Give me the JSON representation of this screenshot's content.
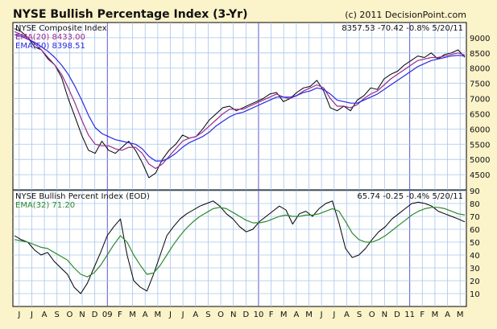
{
  "chart_data": {
    "type": "line",
    "title": "NYSE Bullish Percentage Index (3-Yr)",
    "copyright": "(c) 2011 DecisionPoint.com",
    "colors": {
      "background": "#fbf3c9",
      "plot_background": "#ffffff",
      "grid": "#a7c6e8",
      "year_divider": "#5a5ad0",
      "price": "#000000",
      "ema_short": "#9b2a8e",
      "ema_long": "#2a2adf",
      "bpi_ema": "#2e8a2e"
    },
    "x_axis": {
      "tick_labels": [
        "J",
        "J",
        "A",
        "S",
        "O",
        "N",
        "D",
        "09",
        "F",
        "M",
        "A",
        "M",
        "J",
        "J",
        "A",
        "S",
        "O",
        "N",
        "D",
        "10",
        "F",
        "M",
        "A",
        "M",
        "J",
        "J",
        "A",
        "S",
        "O",
        "N",
        "D",
        "11",
        "F",
        "M",
        "A",
        "M"
      ],
      "year_labels": [
        "09",
        "10",
        "11"
      ]
    },
    "panels": [
      {
        "name": "NYSE Composite Index",
        "ema_labels": [
          "EMA(20) 8433.00",
          "EMA(50) 8398.51"
        ],
        "readout": "8357.53  -70.42  -0.8%  5/20/11",
        "y_range": [
          4000,
          9500
        ],
        "y_ticks": [
          4500,
          5000,
          5500,
          6000,
          6500,
          7000,
          7500,
          8000,
          8500,
          9000
        ],
        "series": [
          {
            "values": [
              9300,
              9200,
              9000,
              8700,
              8600,
              8300,
              8100,
              7700,
              7000,
              6400,
              5800,
              5300,
              5200,
              5600,
              5300,
              5200,
              5400,
              5600,
              5300,
              4900,
              4400,
              4550,
              5000,
              5300,
              5500,
              5800,
              5700,
              5750,
              6000,
              6300,
              6500,
              6700,
              6750,
              6600,
              6700,
              6800,
              6900,
              7000,
              7150,
              7200,
              6900,
              7000,
              7200,
              7350,
              7400,
              7600,
              7250,
              6700,
              6600,
              6750,
              6600,
              6950,
              7100,
              7350,
              7300,
              7650,
              7800,
              7900,
              8100,
              8250,
              8400,
              8350,
              8500,
              8300,
              8450,
              8500,
              8600,
              8357.53
            ]
          },
          {
            "name": "EMA(20)",
            "values": [
              9200,
              9100,
              9000,
              8800,
              8600,
              8350,
              8100,
              7800,
              7350,
              6850,
              6300,
              5800,
              5500,
              5450,
              5450,
              5350,
              5300,
              5400,
              5400,
              5200,
              4850,
              4700,
              4850,
              5100,
              5350,
              5600,
              5700,
              5750,
              5900,
              6100,
              6300,
              6500,
              6650,
              6650,
              6650,
              6750,
              6850,
              6950,
              7050,
              7150,
              7050,
              7000,
              7100,
              7250,
              7350,
              7450,
              7350,
              7000,
              6750,
              6750,
              6700,
              6800,
              7000,
              7150,
              7250,
              7450,
              7650,
              7800,
              7950,
              8100,
              8250,
              8300,
              8350,
              8350,
              8400,
              8450,
              8500,
              8433.0
            ]
          },
          {
            "name": "EMA(50)",
            "values": [
              9100,
              9050,
              8950,
              8850,
              8700,
              8550,
              8350,
              8100,
              7800,
              7400,
              6950,
              6450,
              6050,
              5850,
              5750,
              5650,
              5600,
              5550,
              5500,
              5350,
              5100,
              4950,
              4950,
              5050,
              5200,
              5400,
              5550,
              5650,
              5750,
              5900,
              6100,
              6250,
              6400,
              6500,
              6550,
              6650,
              6750,
              6850,
              6950,
              7050,
              7050,
              7050,
              7100,
              7200,
              7250,
              7350,
              7300,
              7150,
              6950,
              6900,
              6850,
              6850,
              6950,
              7050,
              7150,
              7300,
              7450,
              7600,
              7750,
              7900,
              8050,
              8150,
              8250,
              8300,
              8350,
              8400,
              8420,
              8398.51
            ]
          }
        ]
      },
      {
        "name": "NYSE Bullish Percent Index (EOD)",
        "ema_labels": [
          "EMA(32) 71.20"
        ],
        "readout": "65.74  -0.25  -0.4%  5/20/11",
        "y_range": [
          0,
          90
        ],
        "y_ticks": [
          10,
          20,
          30,
          40,
          50,
          60,
          70,
          80,
          90
        ],
        "series": [
          {
            "values": [
              55,
              52,
              50,
              44,
              40,
              42,
              35,
              30,
              25,
              15,
              10,
              18,
              30,
              42,
              55,
              62,
              68,
              40,
              20,
              15,
              12,
              25,
              40,
              55,
              62,
              68,
              72,
              75,
              78,
              80,
              82,
              78,
              72,
              68,
              62,
              58,
              60,
              66,
              70,
              74,
              78,
              75,
              64,
              72,
              74,
              70,
              76,
              80,
              82,
              65,
              45,
              38,
              40,
              45,
              52,
              58,
              62,
              68,
              72,
              76,
              80,
              81,
              80,
              78,
              74,
              72,
              70,
              68,
              65.74
            ]
          },
          {
            "name": "EMA(32)",
            "values": [
              52,
              51,
              50,
              48,
              46,
              45,
              42,
              39,
              36,
              30,
              25,
              23,
              26,
              32,
              40,
              48,
              55,
              50,
              40,
              32,
              25,
              26,
              32,
              40,
              48,
              55,
              61,
              66,
              70,
              73,
              76,
              77,
              76,
              73,
              70,
              67,
              65,
              65,
              66,
              68,
              70,
              71,
              70,
              70,
              71,
              71,
              72,
              74,
              76,
              74,
              66,
              57,
              52,
              50,
              50,
              52,
              55,
              59,
              63,
              67,
              71,
              74,
              76,
              77,
              77,
              76,
              74,
              72,
              71.2
            ]
          }
        ]
      }
    ]
  }
}
